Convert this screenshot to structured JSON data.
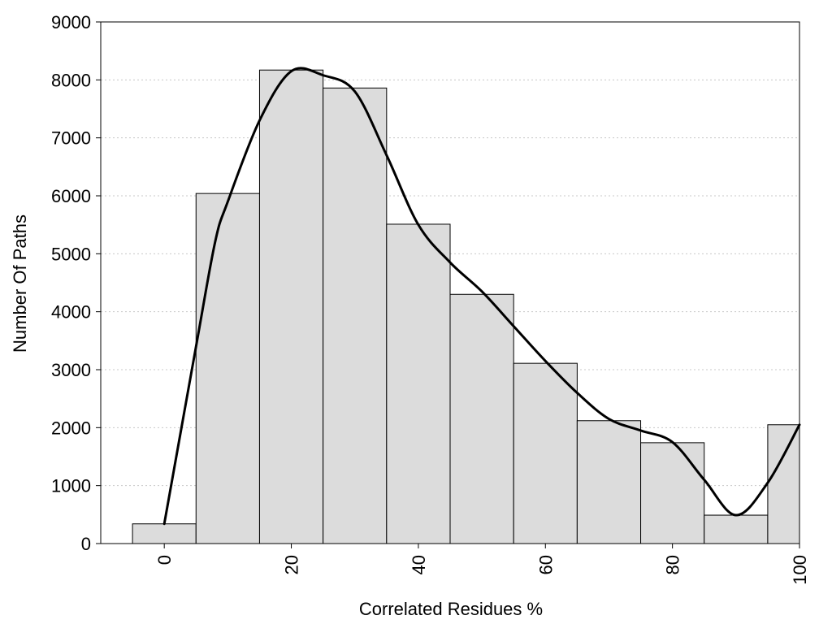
{
  "chart_data": {
    "type": "bar",
    "title": "",
    "xlabel": "Correlated Residues %",
    "ylabel": "Number Of Paths",
    "xlim": [
      -10,
      100
    ],
    "ylim": [
      0,
      9000
    ],
    "grid": true,
    "bin_width": 10,
    "x_ticks": [
      0,
      20,
      40,
      60,
      80,
      100
    ],
    "y_ticks": [
      0,
      1000,
      2000,
      3000,
      4000,
      5000,
      6000,
      7000,
      8000,
      9000
    ],
    "bins": [
      {
        "center": 0,
        "value": 340
      },
      {
        "center": 10,
        "value": 6040
      },
      {
        "center": 20,
        "value": 8170
      },
      {
        "center": 30,
        "value": 7860
      },
      {
        "center": 40,
        "value": 5510
      },
      {
        "center": 50,
        "value": 4300
      },
      {
        "center": 60,
        "value": 3110
      },
      {
        "center": 70,
        "value": 2120
      },
      {
        "center": 80,
        "value": 1740
      },
      {
        "center": 90,
        "value": 490
      },
      {
        "center": 100,
        "value": 2050
      }
    ],
    "density_curve": [
      {
        "x": 0,
        "y": 340
      },
      {
        "x": 5,
        "y": 3400
      },
      {
        "x": 8,
        "y": 5200
      },
      {
        "x": 10,
        "y": 5900
      },
      {
        "x": 15,
        "y": 7300
      },
      {
        "x": 20,
        "y": 8150
      },
      {
        "x": 25,
        "y": 8080
      },
      {
        "x": 30,
        "y": 7800
      },
      {
        "x": 35,
        "y": 6700
      },
      {
        "x": 40,
        "y": 5500
      },
      {
        "x": 45,
        "y": 4850
      },
      {
        "x": 50,
        "y": 4350
      },
      {
        "x": 55,
        "y": 3750
      },
      {
        "x": 60,
        "y": 3150
      },
      {
        "x": 65,
        "y": 2600
      },
      {
        "x": 70,
        "y": 2150
      },
      {
        "x": 75,
        "y": 1950
      },
      {
        "x": 80,
        "y": 1750
      },
      {
        "x": 85,
        "y": 1100
      },
      {
        "x": 90,
        "y": 490
      },
      {
        "x": 95,
        "y": 1050
      },
      {
        "x": 100,
        "y": 2050
      }
    ],
    "colors": {
      "bar_fill": "#dcdcdc",
      "bar_stroke": "#000000",
      "curve": "#000000",
      "grid": "#c8c8c8"
    }
  }
}
